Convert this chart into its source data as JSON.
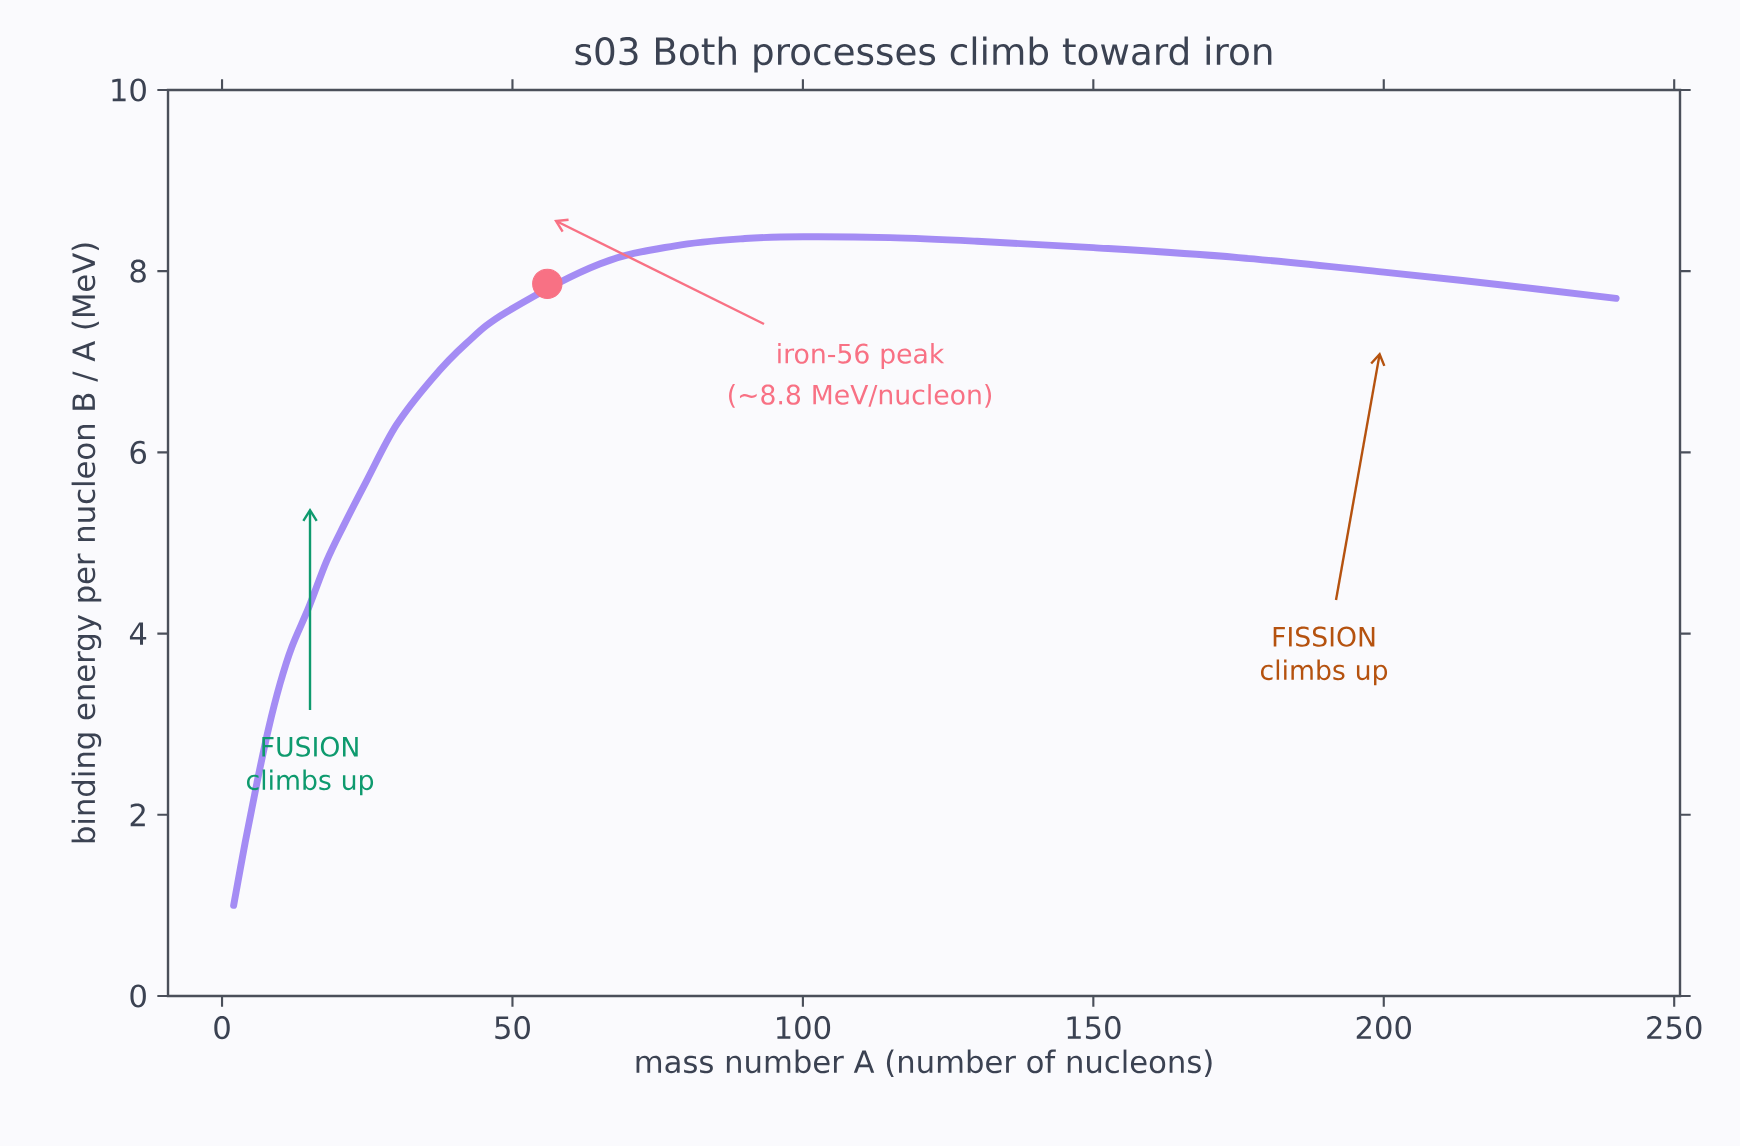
{
  "chart_data": {
    "type": "line",
    "title": "s03  Both processes climb toward iron",
    "xlabel": "mass number  A  (number of nucleons)",
    "ylabel": "binding energy per nucleon  B / A  (MeV)",
    "xlim": [
      -9.3,
      251
    ],
    "ylim": [
      0,
      10
    ],
    "xticks": [
      0,
      50,
      100,
      150,
      200,
      250
    ],
    "yticks": [
      0,
      2,
      4,
      6,
      8,
      10
    ],
    "series": [
      {
        "color": "#a48cf4",
        "marker": "none",
        "x": [
          2,
          4,
          6,
          8,
          10,
          12,
          15,
          18,
          21,
          25,
          30,
          36,
          42,
          49,
          65,
          78,
          90,
          100,
          115,
          130,
          150,
          175,
          200,
          220,
          240
        ],
        "values": [
          1.0,
          1.7,
          2.35,
          2.95,
          3.45,
          3.85,
          4.3,
          4.8,
          5.2,
          5.7,
          6.3,
          6.8,
          7.2,
          7.55,
          8.08,
          8.28,
          8.36,
          8.38,
          8.37,
          8.33,
          8.26,
          8.15,
          7.99,
          7.85,
          7.7
        ]
      },
      {
        "type": "scatter",
        "color": "#f87184",
        "marker": "circle",
        "x": [
          56
        ],
        "values": [
          7.86
        ]
      }
    ],
    "annotations": [
      "iron-56  peak",
      "(~8.8 MeV/nucleon)",
      "FUSION climbs up",
      "FISSION climbs up"
    ]
  }
}
